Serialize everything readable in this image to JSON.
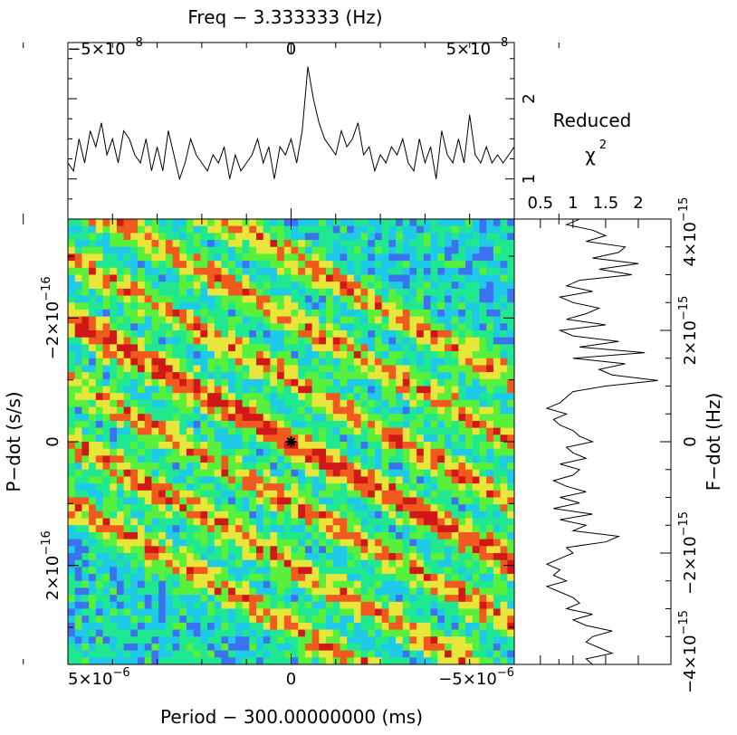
{
  "chart_data": [
    {
      "panel": "top",
      "type": "line",
      "title": "Freq − 3.333333 (Hz)",
      "xlabel": "Freq − 3.333333 (Hz)",
      "xlim": [
        -6e-08,
        6e-08
      ],
      "xticks": [
        {
          "value": -5e-08,
          "mant": "−5×10",
          "exp": "−8"
        },
        {
          "value": 0,
          "mant": "0",
          "exp": ""
        },
        {
          "value": 5e-08,
          "mant": "5×10",
          "exp": "−8"
        }
      ],
      "ylabel_line1": "Reduced",
      "ylabel_chi": "χ",
      "ylabel_sup": "2",
      "ylim": [
        0.5,
        2.7
      ],
      "yticks": [
        {
          "value": 1,
          "label": "1"
        },
        {
          "value": 2,
          "label": "2"
        }
      ],
      "series": [
        {
          "values": [
            1.2,
            1.1,
            1.5,
            1.2,
            1.6,
            1.4,
            1.7,
            1.3,
            1.5,
            1.2,
            1.6,
            1.5,
            1.3,
            1.2,
            1.5,
            1.1,
            1.4,
            1.1,
            1.6,
            1.3,
            1.0,
            1.2,
            1.5,
            1.3,
            1.2,
            1.1,
            1.3,
            1.2,
            1.4,
            1.0,
            1.3,
            1.1,
            1.2,
            1.3,
            1.5,
            1.2,
            1.4,
            1.0,
            1.4,
            1.3,
            1.5,
            1.2,
            1.6,
            2.4,
            2.0,
            1.7,
            1.5,
            1.4,
            1.3,
            1.6,
            1.4,
            1.5,
            1.7,
            1.3,
            1.4,
            1.1,
            1.3,
            1.2,
            1.4,
            1.3,
            1.5,
            1.2,
            1.1,
            1.5,
            1.2,
            1.4,
            1.0,
            1.6,
            1.3,
            1.2,
            1.5,
            1.2,
            1.8,
            1.3,
            1.2,
            1.4,
            1.2,
            1.3,
            1.2,
            1.3,
            1.4
          ]
        }
      ]
    },
    {
      "panel": "right",
      "type": "line",
      "xlabel_line": "Reduced χ2",
      "xlim": [
        0.1,
        2.5
      ],
      "xticks": [
        {
          "value": 0.5,
          "label": "0.5"
        },
        {
          "value": 1,
          "label": "1"
        },
        {
          "value": 1.5,
          "label": "1.5"
        },
        {
          "value": 2,
          "label": "2"
        }
      ],
      "ylabel": "F−dot (Hz)",
      "ylim": [
        -4e-15,
        4e-15
      ],
      "yticks": [
        {
          "value": 4e-15,
          "mant": "4×10",
          "exp": "−15"
        },
        {
          "value": 2e-15,
          "mant": "2×10",
          "exp": "−15"
        },
        {
          "value": 0,
          "mant": "0",
          "exp": ""
        },
        {
          "value": -2e-15,
          "mant": "−2×10",
          "exp": "−15"
        },
        {
          "value": -4e-15,
          "mant": "−4×10",
          "exp": "−15"
        }
      ],
      "series": [
        {
          "values": [
            1.1,
            0.9,
            1.3,
            1.5,
            1.2,
            1.8,
            1.7,
            1.3,
            2.0,
            1.4,
            1.9,
            1.1,
            0.9,
            1.3,
            0.8,
            1.0,
            1.4,
            1.2,
            0.9,
            1.5,
            0.8,
            1.0,
            1.7,
            1.1,
            2.1,
            1.0,
            1.8,
            1.4,
            1.6,
            2.3,
            1.5,
            1.0,
            0.9,
            0.8,
            0.6,
            0.9,
            0.7,
            0.8,
            1.0,
            1.1,
            1.3,
            0.9,
            1.0,
            1.2,
            0.8,
            1.1,
            1.0,
            0.7,
            0.9,
            1.2,
            0.8,
            1.1,
            0.7,
            1.3,
            0.8,
            1.2,
            1.0,
            1.7,
            1.5,
            0.9,
            1.0,
            0.8,
            0.6,
            0.8,
            0.7,
            0.9,
            0.6,
            0.8,
            1.0,
            1.1,
            0.9,
            1.3,
            1.0,
            1.2,
            1.6,
            1.3,
            1.2,
            1.4,
            1.6,
            1.2,
            1.3
          ]
        }
      ]
    },
    {
      "panel": "main",
      "type": "heatmap",
      "xlabel": "Period − 300.00000000 (ms)",
      "ylabel": "P−dot (s/s)",
      "xlim": [
        5e-06,
        -5e-06
      ],
      "ylim": [
        -3.6e-16,
        3.6e-16
      ],
      "xticks": [
        {
          "value": 5e-06,
          "mant": "5×10",
          "exp": "−6"
        },
        {
          "value": 0,
          "mant": "0",
          "exp": ""
        },
        {
          "value": -5e-06,
          "mant": "−5×10",
          "exp": "−6"
        }
      ],
      "yticks": [
        {
          "value": -2e-16,
          "mant": "−2×10",
          "exp": "−16"
        },
        {
          "value": 0,
          "mant": "0",
          "exp": ""
        },
        {
          "value": 2e-16,
          "mant": "2×10",
          "exp": "−16"
        }
      ],
      "best_fit_marker": {
        "x": 0,
        "y": 0
      },
      "colormap": [
        "#1f22d8",
        "#3b72f0",
        "#1fc9e8",
        "#20e890",
        "#59f03c",
        "#e8e63a",
        "#f05a1e",
        "#d01818"
      ],
      "grid": false
    }
  ]
}
